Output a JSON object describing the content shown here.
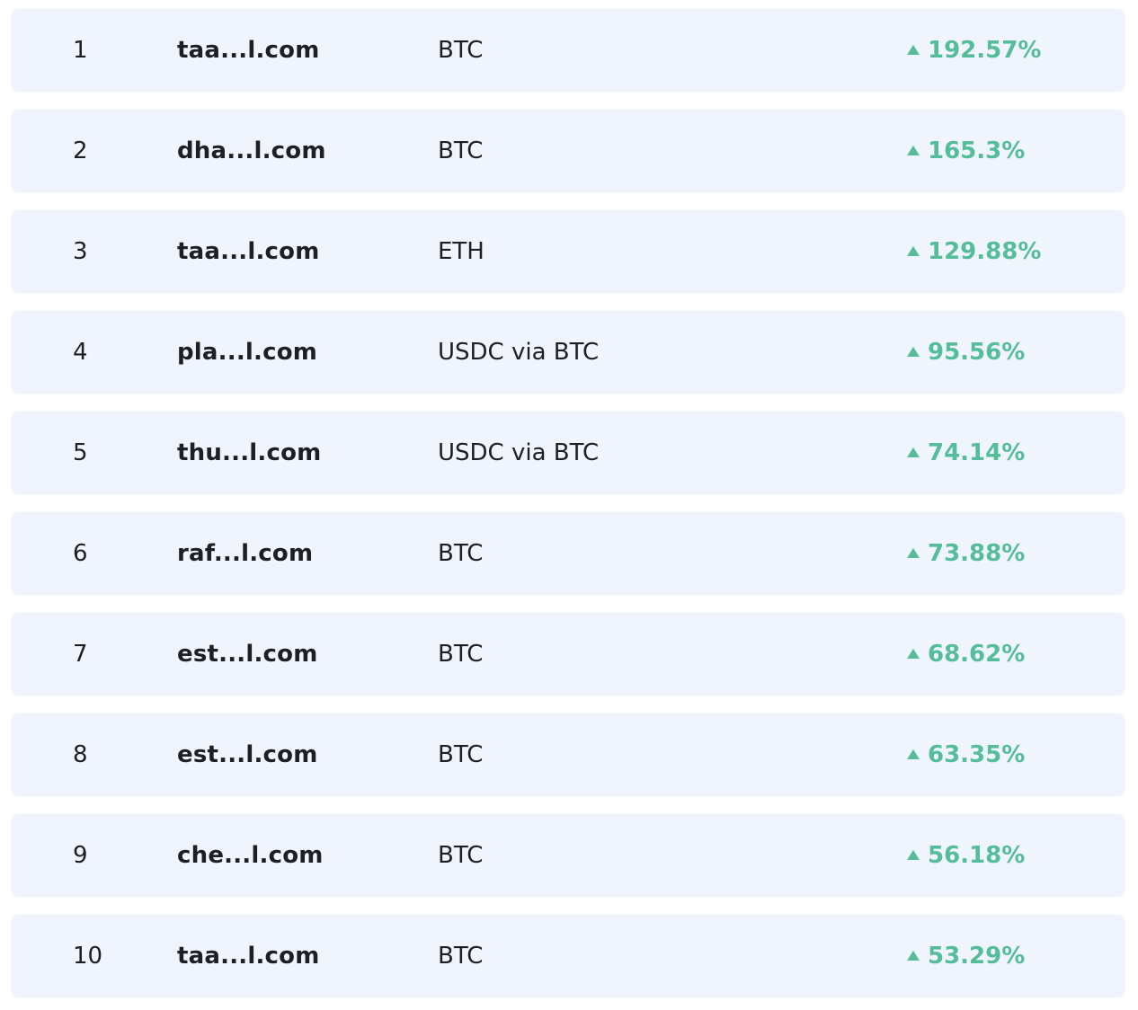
{
  "colors": {
    "row_background": "#eff4fd",
    "positive_change": "#55bd9a",
    "text": "#1c1f24"
  },
  "rows": [
    {
      "rank": "1",
      "domain": "taa...l.com",
      "asset": "BTC",
      "change": "192.57%",
      "change_icon": "up-triangle-icon"
    },
    {
      "rank": "2",
      "domain": "dha...l.com",
      "asset": "BTC",
      "change": "165.3%",
      "change_icon": "up-triangle-icon"
    },
    {
      "rank": "3",
      "domain": "taa...l.com",
      "asset": "ETH",
      "change": "129.88%",
      "change_icon": "up-triangle-icon"
    },
    {
      "rank": "4",
      "domain": "pla...l.com",
      "asset": "USDC via BTC",
      "change": "95.56%",
      "change_icon": "up-triangle-icon"
    },
    {
      "rank": "5",
      "domain": "thu...l.com",
      "asset": "USDC via BTC",
      "change": "74.14%",
      "change_icon": "up-triangle-icon"
    },
    {
      "rank": "6",
      "domain": "raf...l.com",
      "asset": "BTC",
      "change": "73.88%",
      "change_icon": "up-triangle-icon"
    },
    {
      "rank": "7",
      "domain": "est...l.com",
      "asset": "BTC",
      "change": "68.62%",
      "change_icon": "up-triangle-icon"
    },
    {
      "rank": "8",
      "domain": "est...l.com",
      "asset": "BTC",
      "change": "63.35%",
      "change_icon": "up-triangle-icon"
    },
    {
      "rank": "9",
      "domain": "che...l.com",
      "asset": "BTC",
      "change": "56.18%",
      "change_icon": "up-triangle-icon"
    },
    {
      "rank": "10",
      "domain": "taa...l.com",
      "asset": "BTC",
      "change": "53.29%",
      "change_icon": "up-triangle-icon"
    }
  ]
}
